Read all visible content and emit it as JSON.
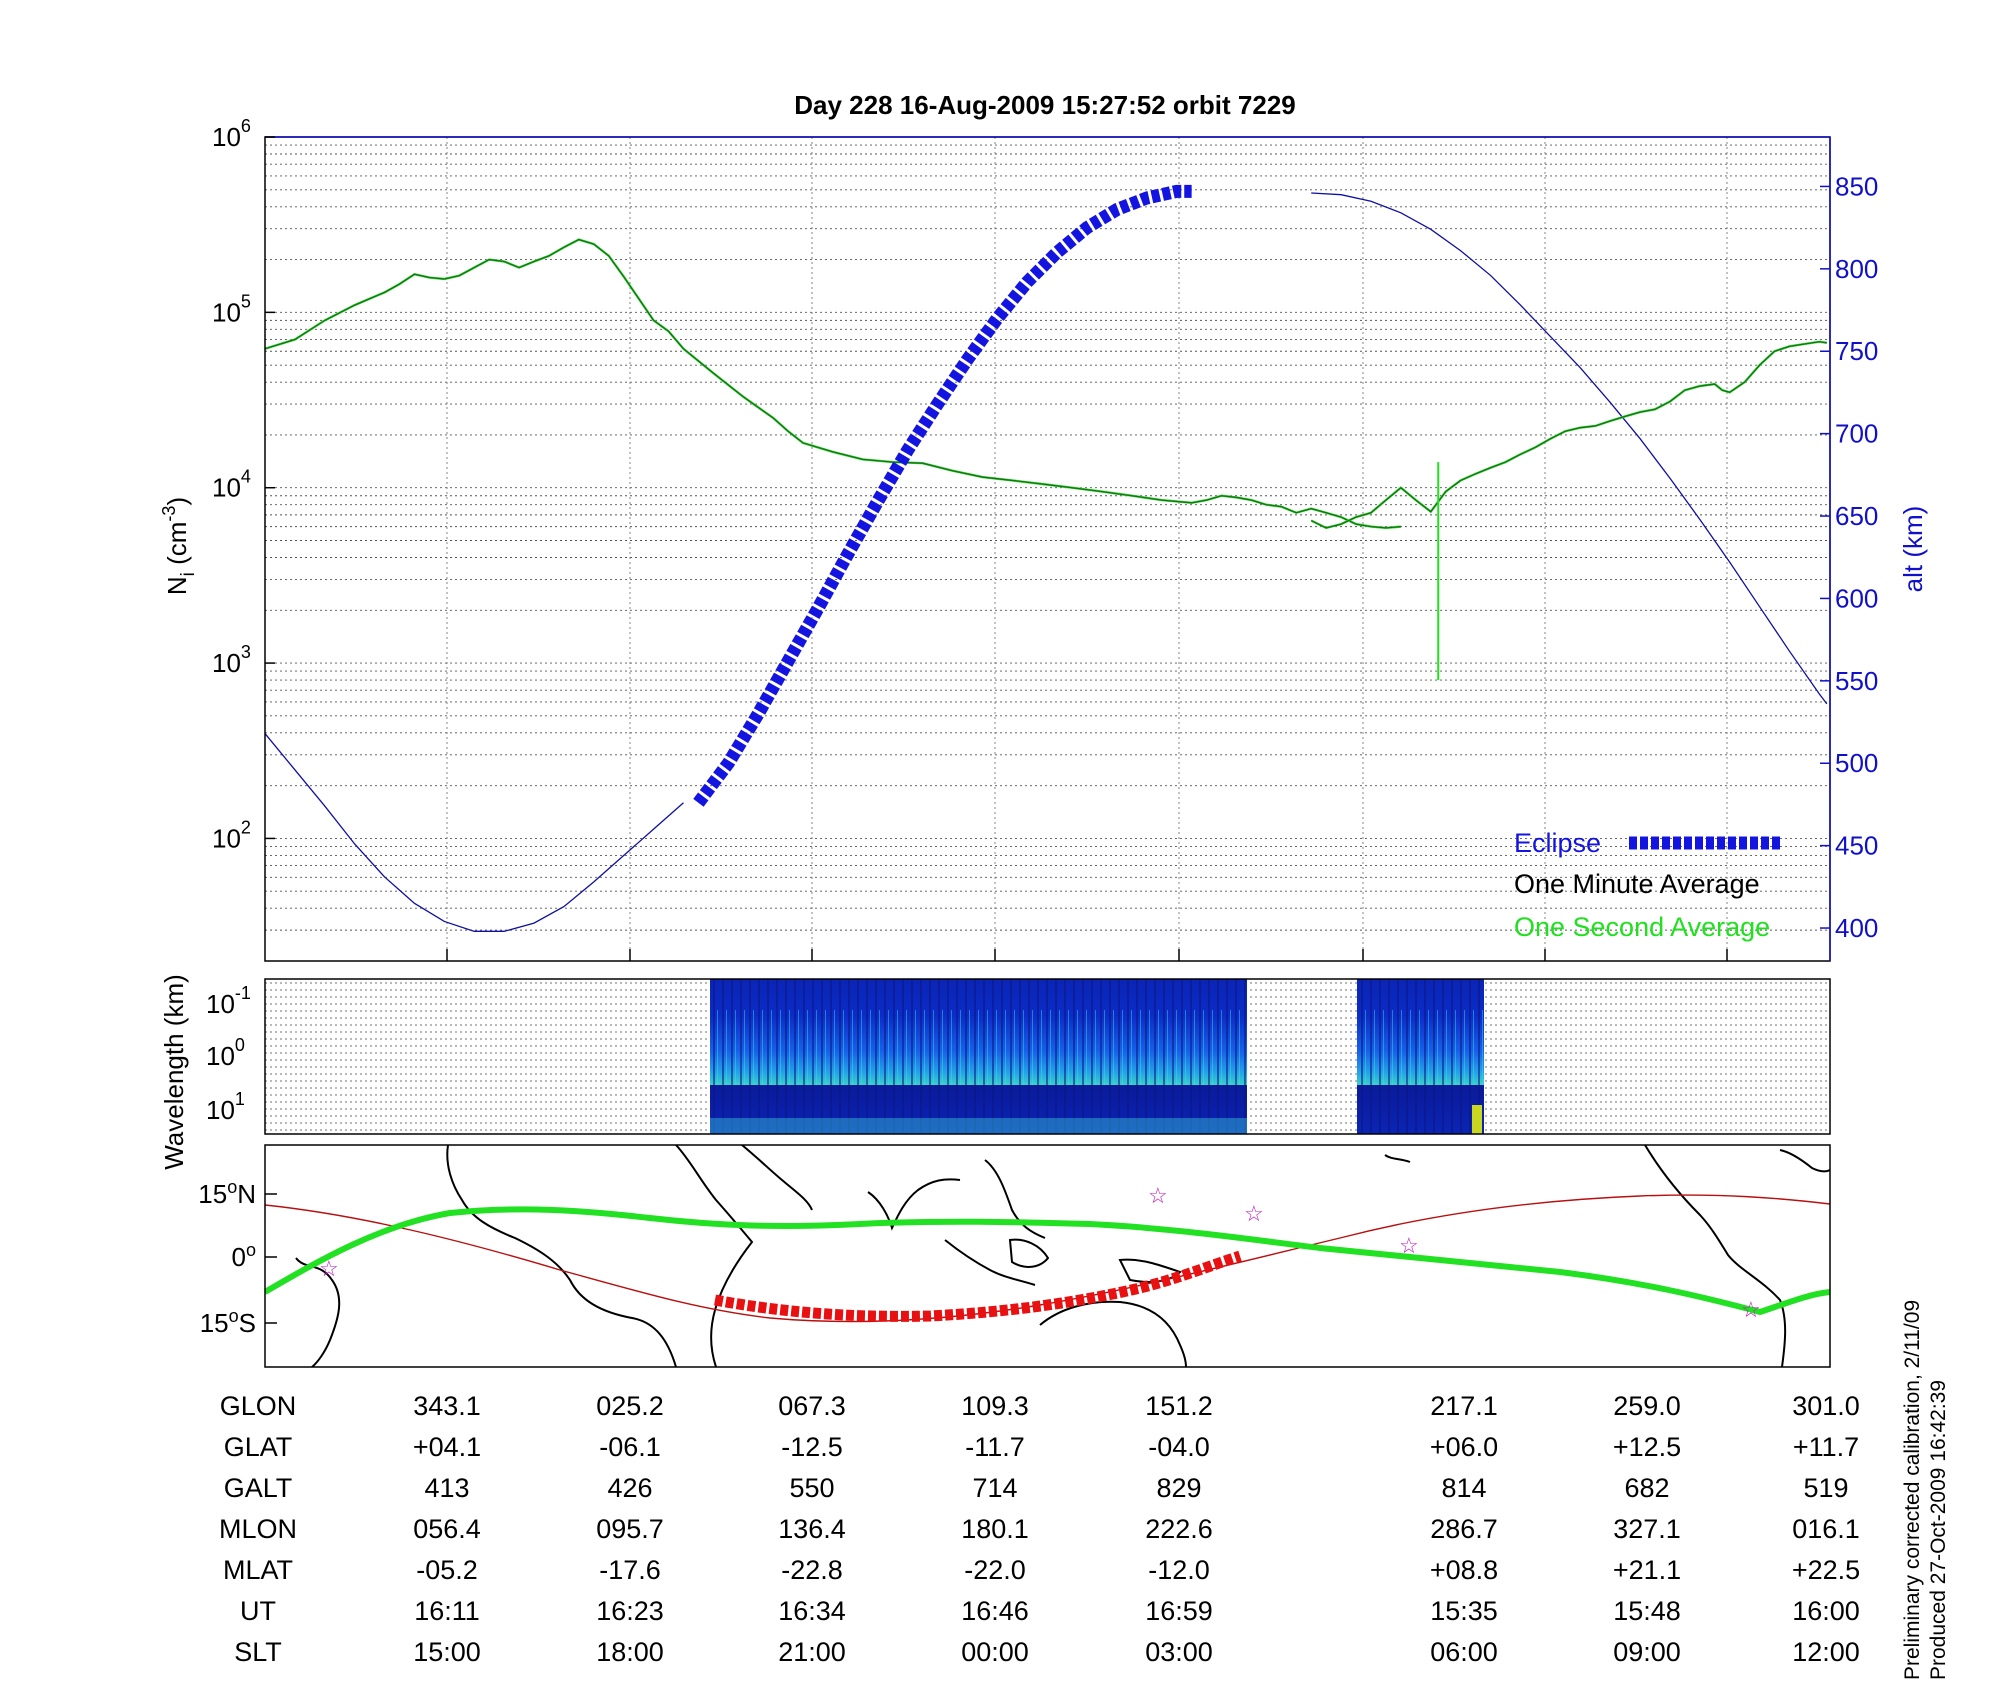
{
  "chart_data": [
    {
      "type": "line",
      "title": "Day 228  16-Aug-2009 15:27:52   orbit 7229",
      "ylabel_left": "N",
      "ylabel_left_sub": "i",
      "ylabel_left_unit_open": " (cm",
      "ylabel_left_unit_sup": "-3",
      "ylabel_left_unit_close": ")",
      "yscale_left": "log",
      "ylim_left": [
        20,
        1000000
      ],
      "yticks_left": [
        {
          "exp": "2",
          "value": 100
        },
        {
          "exp": "3",
          "value": 1000
        },
        {
          "exp": "4",
          "value": 10000
        },
        {
          "exp": "5",
          "value": 100000
        },
        {
          "exp": "6",
          "value": 1000000
        }
      ],
      "ylabel_right": "alt (km)",
      "ylim_right": [
        380,
        880
      ],
      "yticks_right": [
        400,
        450,
        500,
        550,
        600,
        650,
        700,
        750,
        800,
        850
      ],
      "xlim": [
        0,
        100
      ],
      "grid": "horizontal dotted",
      "legend": {
        "placement": "bottom-right",
        "entries": [
          {
            "label": "Eclipse",
            "color": "#1414e0"
          },
          {
            "label": "One Minute Average",
            "color": "#000000"
          },
          {
            "label": "One Second Average",
            "color": "#20e020"
          }
        ]
      },
      "series": [
        {
          "name": "One Minute Average",
          "color": "#1a6e1a",
          "segments": [
            [
              [
                0,
                62000
              ],
              [
                2,
                70000
              ],
              [
                4,
                90000
              ],
              [
                6,
                110000
              ],
              [
                8,
                130000
              ],
              [
                9,
                145000
              ],
              [
                10,
                165000
              ],
              [
                11,
                158000
              ],
              [
                12,
                155000
              ],
              [
                13,
                162000
              ],
              [
                14,
                180000
              ],
              [
                15,
                200000
              ],
              [
                16,
                195000
              ],
              [
                17,
                180000
              ],
              [
                18,
                195000
              ],
              [
                19,
                210000
              ],
              [
                20,
                235000
              ],
              [
                21,
                260000
              ],
              [
                22,
                245000
              ],
              [
                23,
                210000
              ],
              [
                24,
                160000
              ],
              [
                25,
                120000
              ],
              [
                26,
                90000
              ],
              [
                27,
                78000
              ],
              [
                28,
                62000
              ],
              [
                30,
                45000
              ],
              [
                32,
                33000
              ],
              [
                34,
                25000
              ],
              [
                35,
                21000
              ],
              [
                36,
                18000
              ],
              [
                38,
                16000
              ],
              [
                40,
                14500
              ],
              [
                42,
                14000
              ],
              [
                44,
                13800
              ],
              [
                46,
                12500
              ],
              [
                48,
                11500
              ],
              [
                50,
                11000
              ],
              [
                52,
                10500
              ],
              [
                54,
                10000
              ],
              [
                56,
                9500
              ],
              [
                58,
                9000
              ],
              [
                60,
                8500
              ],
              [
                62,
                8200
              ],
              [
                63,
                8500
              ],
              [
                64,
                9000
              ],
              [
                65,
                8800
              ],
              [
                66,
                8500
              ],
              [
                67,
                8000
              ],
              [
                68,
                7800
              ],
              [
                69,
                7200
              ],
              [
                70,
                7600
              ],
              [
                71,
                7200
              ],
              [
                72,
                6800
              ],
              [
                73,
                6200
              ],
              [
                74,
                6000
              ],
              [
                75,
                5900
              ],
              [
                76,
                6000
              ]
            ],
            [
              [
                70,
                6500
              ],
              [
                71,
                5900
              ],
              [
                72,
                6200
              ],
              [
                73,
                6800
              ],
              [
                74,
                7200
              ],
              [
                75,
                8500
              ],
              [
                76,
                10000
              ],
              [
                77,
                8500
              ],
              [
                78,
                7300
              ],
              [
                79,
                9500
              ],
              [
                80,
                11000
              ],
              [
                81,
                12000
              ],
              [
                82,
                13000
              ],
              [
                83,
                14000
              ],
              [
                84,
                15500
              ],
              [
                85,
                17000
              ],
              [
                86,
                19000
              ],
              [
                87,
                21000
              ],
              [
                88,
                22000
              ],
              [
                89,
                22500
              ],
              [
                90,
                24000
              ],
              [
                91,
                25500
              ],
              [
                92,
                27000
              ],
              [
                93,
                28000
              ],
              [
                94,
                31000
              ],
              [
                95,
                36000
              ],
              [
                96,
                38000
              ],
              [
                97,
                39000
              ],
              [
                97.5,
                36000
              ],
              [
                98,
                35000
              ],
              [
                99,
                40000
              ],
              [
                100,
                50000
              ],
              [
                101,
                60000
              ],
              [
                102,
                64000
              ],
              [
                103,
                66000
              ],
              [
                104,
                68000
              ],
              [
                104.5,
                67000
              ]
            ]
          ]
        },
        {
          "name": "One Second Average",
          "color": "#20e020",
          "spike": {
            "x": 78.5,
            "top": 14000,
            "bottom": 800
          }
        },
        {
          "name": "Altitude",
          "axis": "right",
          "color": "#1010a0",
          "segments": [
            [
              [
                0,
                518
              ],
              [
                2,
                496
              ],
              [
                4,
                474
              ],
              [
                6,
                451
              ],
              [
                8,
                431
              ],
              [
                10,
                415
              ],
              [
                12,
                404
              ],
              [
                14,
                398
              ],
              [
                16,
                398
              ],
              [
                18,
                403
              ],
              [
                20,
                413
              ],
              [
                22,
                428
              ],
              [
                24,
                444
              ],
              [
                26,
                460
              ],
              [
                28,
                476
              ]
            ],
            [
              [
                70,
                846
              ],
              [
                72,
                845
              ],
              [
                74,
                841
              ],
              [
                76,
                834
              ],
              [
                78,
                824
              ],
              [
                80,
                811
              ],
              [
                82,
                796
              ],
              [
                84,
                778
              ],
              [
                86,
                759
              ],
              [
                88,
                740
              ],
              [
                90,
                719
              ],
              [
                92,
                697
              ],
              [
                94,
                673
              ],
              [
                96,
                648
              ],
              [
                98,
                622
              ],
              [
                100,
                595
              ],
              [
                102,
                568
              ],
              [
                104,
                542
              ],
              [
                104.5,
                536
              ]
            ]
          ]
        },
        {
          "name": "Eclipse",
          "axis": "right",
          "color": "#1414e0",
          "dashed": true,
          "points": [
            [
              29,
              476
            ],
            [
              31,
              500
            ],
            [
              33,
              530
            ],
            [
              35,
              562
            ],
            [
              37,
              594
            ],
            [
              39,
              627
            ],
            [
              41,
              659
            ],
            [
              43,
              690
            ],
            [
              45,
              718
            ],
            [
              47,
              745
            ],
            [
              49,
              770
            ],
            [
              51,
              792
            ],
            [
              53,
              810
            ],
            [
              55,
              825
            ],
            [
              57,
              836
            ],
            [
              59,
              843
            ],
            [
              61,
              847
            ],
            [
              62,
              847
            ]
          ]
        }
      ]
    },
    {
      "type": "heatmap",
      "ylabel": "Wavelength (km)",
      "yticks": [
        {
          "exp": "-1"
        },
        {
          "exp": "0"
        },
        {
          "exp": "1"
        }
      ],
      "data_blocks_x": [
        [
          28.5,
          62.8
        ],
        [
          69.9,
          78.1
        ]
      ]
    },
    {
      "type": "map",
      "yticks": [
        {
          "deg": "15",
          "hemisphere": "N"
        },
        {
          "deg": "0",
          "hemisphere": ""
        },
        {
          "deg": "15",
          "hemisphere": "S"
        }
      ],
      "ground_track": "green",
      "magnetic_equator": "red thin",
      "eclipse_track": "red dashed"
    }
  ],
  "table": {
    "rows": [
      {
        "label": "GLON",
        "values": [
          "343.1",
          "025.2",
          "067.3",
          "109.3",
          "151.2",
          "217.1",
          "259.0",
          "301.0"
        ]
      },
      {
        "label": "GLAT",
        "values": [
          "+04.1",
          "-06.1",
          "-12.5",
          "-11.7",
          "-04.0",
          "+06.0",
          "+12.5",
          "+11.7"
        ]
      },
      {
        "label": "GALT",
        "values": [
          "413",
          "426",
          "550",
          "714",
          "829",
          "814",
          "682",
          "519"
        ]
      },
      {
        "label": "MLON",
        "values": [
          "056.4",
          "095.7",
          "136.4",
          "180.1",
          "222.6",
          "286.7",
          "327.1",
          "016.1"
        ]
      },
      {
        "label": "MLAT",
        "values": [
          "-05.2",
          "-17.6",
          "-22.8",
          "-22.0",
          "-12.0",
          "+08.8",
          "+21.1",
          "+22.5"
        ]
      },
      {
        "label": "UT",
        "values": [
          "16:11",
          "16:23",
          "16:34",
          "16:46",
          "16:59",
          "15:35",
          "15:48",
          "16:00"
        ]
      },
      {
        "label": "SLT",
        "values": [
          "15:00",
          "18:00",
          "21:00",
          "00:00",
          "03:00",
          "06:00",
          "09:00",
          "12:00"
        ]
      }
    ]
  },
  "footnote": {
    "line1": "Preliminary corrected calibration, 2/11/09",
    "line2": "Produced 27-Oct-2009 16:42:39"
  }
}
